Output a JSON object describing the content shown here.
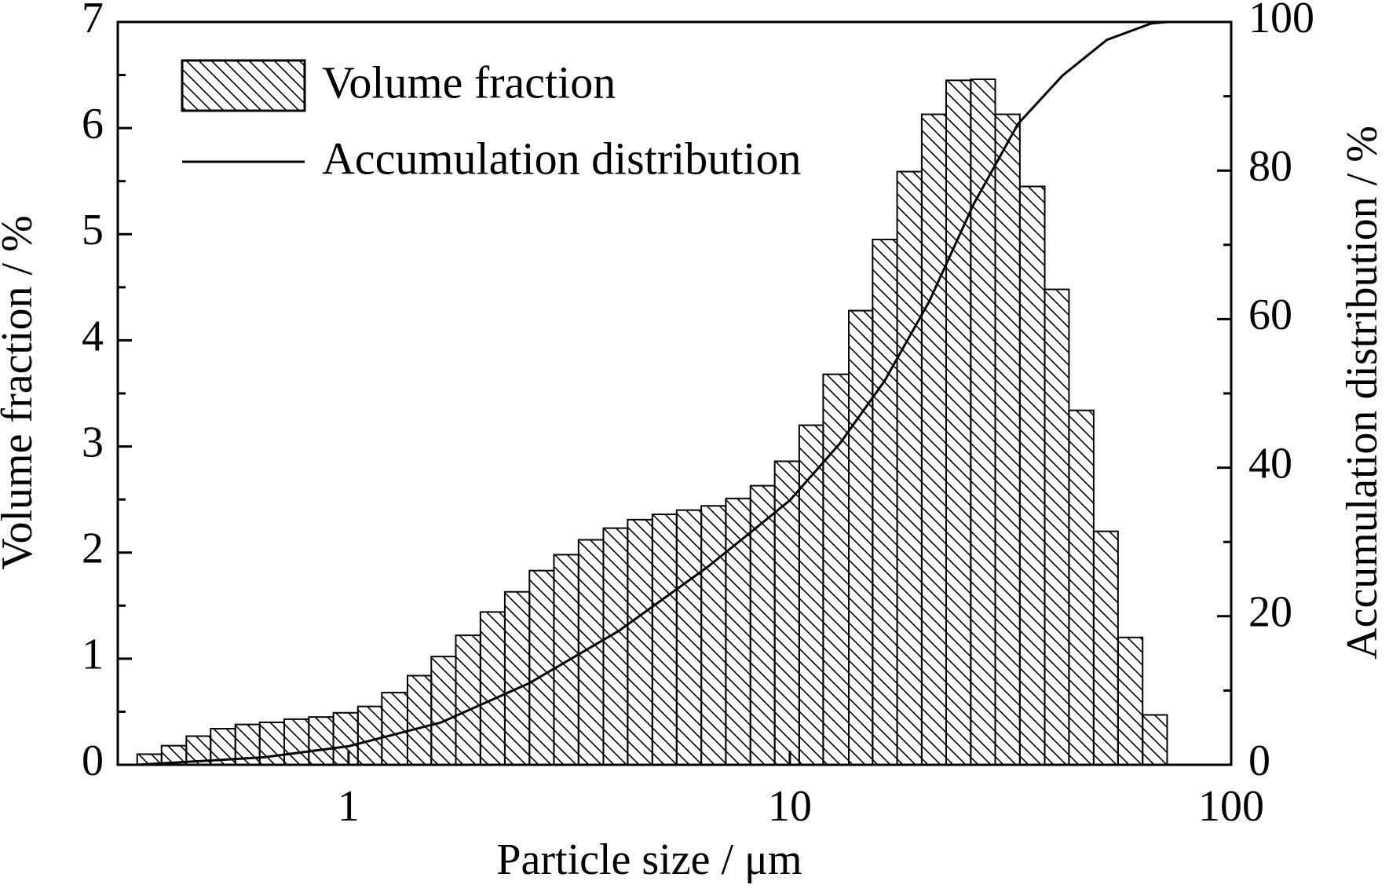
{
  "chart_data": {
    "type": "histogram",
    "xlabel": "Particle size / μm",
    "ylabel": "Volume fraction / %",
    "y2label": "Accumulation distribution / %",
    "xscale": "log",
    "xlim": [
      0.3,
      100
    ],
    "xticks": [
      1,
      10,
      100
    ],
    "ylim": [
      0,
      7
    ],
    "yticks": [
      0,
      1,
      2,
      3,
      4,
      5,
      6,
      7
    ],
    "yminorticks": [
      0.5,
      1.5,
      2.5,
      3.5,
      4.5,
      5.5,
      6.5
    ],
    "y2lim": [
      0,
      100
    ],
    "y2ticks": [
      0,
      20,
      40,
      60,
      80,
      100
    ],
    "y2minorticks": [
      10,
      30,
      50,
      70,
      90
    ],
    "legend": "upper left",
    "bins": [
      0.332,
      0.377,
      0.429,
      0.487,
      0.554,
      0.629,
      0.715,
      0.813,
      0.924,
      1.05,
      1.19,
      1.36,
      1.54,
      1.75,
      1.99,
      2.26,
      2.57,
      2.92,
      3.32,
      3.78,
      4.29,
      4.88,
      5.54,
      6.3,
      7.16,
      8.14,
      9.24,
      10.5,
      11.9,
      13.6,
      15.4,
      17.5,
      19.9,
      22.6,
      25.7,
      29.2,
      33.2,
      37.8,
      42.9,
      48.8,
      55.4,
      63.0,
      71.6
    ],
    "series": [
      {
        "name": "Volume fraction",
        "type": "histogram",
        "color": "#000000",
        "hatch": "backslash",
        "values": [
          0.1,
          0.18,
          0.27,
          0.34,
          0.38,
          0.4,
          0.43,
          0.45,
          0.49,
          0.55,
          0.68,
          0.84,
          1.02,
          1.22,
          1.44,
          1.63,
          1.83,
          1.98,
          2.12,
          2.23,
          2.31,
          2.36,
          2.4,
          2.44,
          2.51,
          2.63,
          2.86,
          3.2,
          3.68,
          4.28,
          4.95,
          5.59,
          6.13,
          6.45,
          6.46,
          6.13,
          5.45,
          4.48,
          3.34,
          2.2,
          1.2,
          0.47
        ]
      },
      {
        "name": "Accumulation distribution",
        "type": "line",
        "axis": "y2",
        "color": "#000000",
        "x": [
          0.332,
          0.641,
          1,
          1.62,
          2.57,
          4.09,
          6.5,
          8.19,
          10,
          13.0,
          16.4,
          20.7,
          26.1,
          32.9,
          41.5,
          52.3,
          65.9,
          71.6
        ],
        "values": [
          0,
          1,
          2.5,
          5.7,
          11,
          18,
          26.6,
          31.4,
          35.6,
          43.3,
          51.7,
          62.4,
          75.5,
          86.3,
          92.8,
          97.6,
          99.8,
          100
        ]
      }
    ]
  }
}
